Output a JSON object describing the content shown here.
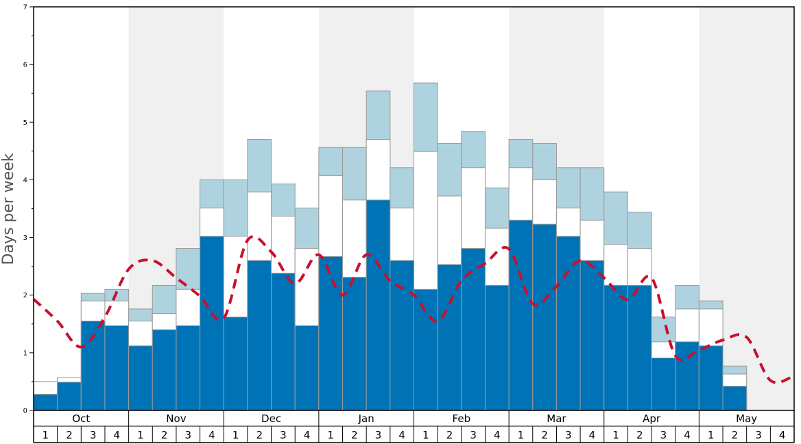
{
  "chart_data": {
    "type": "bar",
    "ylabel": "Days per week",
    "ylim": [
      0,
      7
    ],
    "yticks": [
      "0",
      "1",
      "2",
      "3",
      "4",
      "5",
      "6",
      "7"
    ],
    "months": [
      "Oct",
      "Nov",
      "Dec",
      "Jan",
      "Feb",
      "Mar",
      "Apr",
      "May"
    ],
    "weeks": [
      "1",
      "2",
      "3",
      "4"
    ],
    "colors": {
      "bottom": "#0073b6",
      "middle": "#ffffff",
      "top": "#aed3df",
      "line": "#c8102e",
      "shade": "#f0f0f0",
      "edge": "#999999"
    },
    "series": [
      {
        "values": [
          0.28,
          0.49,
          1.55,
          1.47,
          1.12,
          1.4,
          1.47,
          3.02,
          1.62,
          2.6,
          2.38,
          1.47,
          2.67,
          2.31,
          3.65,
          2.6,
          2.1,
          2.53,
          2.81,
          2.17,
          3.3,
          3.23,
          3.02,
          2.6,
          2.17,
          2.17,
          0.91,
          1.19,
          1.12,
          0.42,
          null,
          null
        ]
      },
      {
        "values": [
          0.5,
          0.57,
          1.9,
          1.9,
          1.55,
          1.68,
          2.1,
          3.51,
          3.02,
          3.79,
          3.37,
          2.81,
          4.07,
          3.65,
          4.7,
          3.51,
          4.49,
          3.72,
          4.21,
          3.16,
          4.21,
          4.0,
          3.51,
          3.3,
          2.88,
          2.81,
          1.19,
          1.76,
          1.76,
          0.63,
          null,
          null
        ]
      },
      {
        "values": [
          0.5,
          0.57,
          2.03,
          2.1,
          1.76,
          2.17,
          2.81,
          4.0,
          4.0,
          4.7,
          3.93,
          3.51,
          4.56,
          4.56,
          5.54,
          4.21,
          5.68,
          4.63,
          4.84,
          3.86,
          4.7,
          4.63,
          4.21,
          4.21,
          3.79,
          3.44,
          1.62,
          2.17,
          1.9,
          0.77,
          null,
          null
        ]
      },
      {
        "values": [
          1.93,
          1.55,
          1.1,
          1.62,
          2.45,
          2.6,
          2.3,
          1.98,
          1.6,
          2.95,
          2.75,
          2.2,
          2.7,
          2.0,
          2.7,
          2.25,
          2.0,
          1.55,
          2.25,
          2.55,
          2.8,
          1.85,
          2.15,
          2.6,
          2.3,
          1.92,
          2.3,
          0.95,
          1.05,
          1.22,
          1.27,
          0.52,
          0.6
        ]
      }
    ]
  }
}
